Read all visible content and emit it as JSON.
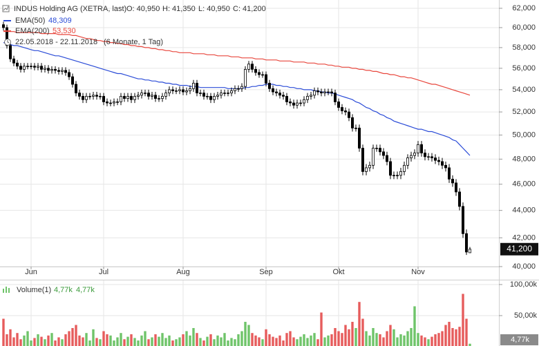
{
  "chart_data": {
    "type": "candlestick",
    "title": "INDUS Holding AG (XETRA, last)",
    "header_values": [
      "O: 40,950",
      "H: 41,350",
      "L: 40,950",
      "C: 41,200"
    ],
    "period": "22.05.2018 - 22.11.2018",
    "period_note": "(6 Monate, 1 Tag)",
    "open": [
      60.3,
      60.0,
      58.2,
      56.9,
      56.5,
      56.2,
      55.9,
      56.2,
      56.2,
      56.2,
      56.1,
      56.2,
      55.9,
      56.0,
      55.8,
      55.9,
      55.8,
      55.7,
      55.8,
      55.6,
      55.2,
      54.5,
      53.7,
      53.4,
      53.1,
      53.4,
      53.4,
      53.5,
      53.4,
      53.4,
      52.9,
      52.8,
      52.8,
      52.9,
      52.9,
      53.4,
      53.2,
      53.4,
      53.1,
      53.4,
      53.5,
      53.7,
      53.7,
      53.4,
      53.5,
      53.2,
      53.2,
      53.4,
      53.7,
      54.0,
      53.9,
      53.9,
      54.0,
      53.8,
      53.9,
      54.1,
      54.6,
      53.7,
      53.7,
      53.4,
      53.4,
      53.1,
      53.4,
      53.5,
      53.7,
      53.7,
      53.7,
      53.9,
      54.1,
      54.1,
      54.3,
      55.9,
      56.4,
      55.9,
      55.6,
      55.4,
      55.4,
      54.6,
      54.1,
      53.8,
      53.7,
      53.5,
      53.4,
      52.9,
      52.8,
      52.6,
      52.8,
      52.8,
      53.1,
      53.4,
      53.5,
      53.9,
      53.8,
      53.7,
      53.8,
      53.8,
      53.7,
      52.9,
      52.4,
      52.1,
      52.0,
      51.5,
      50.6,
      50.6,
      48.9,
      47.0,
      47.3,
      47.5,
      48.9,
      48.9,
      48.6,
      48.3,
      47.8,
      46.7,
      46.7,
      46.7,
      47.0,
      47.5,
      48.1,
      48.3,
      48.5,
      49.2,
      48.5,
      48.2,
      48.2,
      48.1,
      47.9,
      47.8,
      47.5,
      47.3,
      46.4,
      46.1,
      45.4,
      44.3,
      42.3,
      40.95
    ],
    "high": [
      60.6,
      60.3,
      58.5,
      57.2,
      56.8,
      56.5,
      56.5,
      56.5,
      56.5,
      56.5,
      56.5,
      56.5,
      56.3,
      56.3,
      56.2,
      56.2,
      56.1,
      56.1,
      56.1,
      55.9,
      55.5,
      54.8,
      54.0,
      53.7,
      53.7,
      53.7,
      53.8,
      53.8,
      53.7,
      53.7,
      53.2,
      53.1,
      53.2,
      53.2,
      53.7,
      53.7,
      53.7,
      53.7,
      53.7,
      53.8,
      54.0,
      54.0,
      54.0,
      53.8,
      53.8,
      53.5,
      53.7,
      54.0,
      54.3,
      54.3,
      54.2,
      54.3,
      54.3,
      54.2,
      54.4,
      54.9,
      54.9,
      54.0,
      54.0,
      53.7,
      53.7,
      53.7,
      53.8,
      54.0,
      54.0,
      54.0,
      54.2,
      54.4,
      54.4,
      54.6,
      56.2,
      56.7,
      56.7,
      56.2,
      55.9,
      55.7,
      55.7,
      54.9,
      54.4,
      54.1,
      54.0,
      53.8,
      53.7,
      53.2,
      53.1,
      53.1,
      53.1,
      53.4,
      53.7,
      53.8,
      54.2,
      54.2,
      54.1,
      54.1,
      54.1,
      54.1,
      54.0,
      53.2,
      52.7,
      52.4,
      52.3,
      51.8,
      50.9,
      50.9,
      49.2,
      47.6,
      47.8,
      49.2,
      49.2,
      49.2,
      48.9,
      48.6,
      48.1,
      47.0,
      47.0,
      47.3,
      47.8,
      48.4,
      48.6,
      48.8,
      49.5,
      49.5,
      48.8,
      48.5,
      48.5,
      48.4,
      48.2,
      48.1,
      47.8,
      47.6,
      46.7,
      46.4,
      45.7,
      44.6,
      42.6,
      41.35
    ],
    "low": [
      59.7,
      57.9,
      56.6,
      56.2,
      55.9,
      55.6,
      55.6,
      55.9,
      55.9,
      55.8,
      55.8,
      55.6,
      55.6,
      55.5,
      55.5,
      55.5,
      55.4,
      55.4,
      55.3,
      54.9,
      54.2,
      53.4,
      53.1,
      52.8,
      52.8,
      53.1,
      53.1,
      53.1,
      53.1,
      52.6,
      52.5,
      52.5,
      52.5,
      52.6,
      52.6,
      52.9,
      52.9,
      52.8,
      52.8,
      53.1,
      53.2,
      53.4,
      53.1,
      53.1,
      52.9,
      52.9,
      52.9,
      53.1,
      53.4,
      53.6,
      53.6,
      53.6,
      53.5,
      53.5,
      53.6,
      53.8,
      53.4,
      53.4,
      53.1,
      53.1,
      52.8,
      52.8,
      53.1,
      53.2,
      53.4,
      53.4,
      53.4,
      53.6,
      53.8,
      53.8,
      54.0,
      55.6,
      55.6,
      55.3,
      55.1,
      55.1,
      54.3,
      53.8,
      53.5,
      53.4,
      53.2,
      53.1,
      52.6,
      52.5,
      52.3,
      52.3,
      52.5,
      52.5,
      52.8,
      53.1,
      53.2,
      53.5,
      53.4,
      53.4,
      53.5,
      53.4,
      52.6,
      52.1,
      51.8,
      51.7,
      51.2,
      50.3,
      50.3,
      48.6,
      46.7,
      46.7,
      47.0,
      47.2,
      48.6,
      48.3,
      48.0,
      47.5,
      46.4,
      46.4,
      46.4,
      46.4,
      46.7,
      47.2,
      47.8,
      48.0,
      48.2,
      48.2,
      47.9,
      47.9,
      47.8,
      47.6,
      47.5,
      47.2,
      47.0,
      46.1,
      45.8,
      45.1,
      44.0,
      42.0,
      40.8,
      40.95
    ],
    "close": [
      60.0,
      58.2,
      56.9,
      56.5,
      56.2,
      55.9,
      56.2,
      56.2,
      56.2,
      56.1,
      56.2,
      55.9,
      56.0,
      55.8,
      55.9,
      55.8,
      55.7,
      55.8,
      55.6,
      55.2,
      54.5,
      53.7,
      53.4,
      53.1,
      53.4,
      53.4,
      53.5,
      53.4,
      53.4,
      52.9,
      52.8,
      52.8,
      52.9,
      52.9,
      53.4,
      53.2,
      53.4,
      53.1,
      53.4,
      53.5,
      53.7,
      53.7,
      53.4,
      53.5,
      53.2,
      53.2,
      53.4,
      53.7,
      54.0,
      53.9,
      53.9,
      54.0,
      53.8,
      53.9,
      54.1,
      54.6,
      53.7,
      53.7,
      53.4,
      53.4,
      53.1,
      53.4,
      53.5,
      53.7,
      53.7,
      53.7,
      53.9,
      54.1,
      54.1,
      54.3,
      55.9,
      56.4,
      55.9,
      55.6,
      55.4,
      55.4,
      54.6,
      54.1,
      53.8,
      53.7,
      53.5,
      53.4,
      52.9,
      52.8,
      52.6,
      52.8,
      52.8,
      53.1,
      53.4,
      53.5,
      53.9,
      53.8,
      53.7,
      53.8,
      53.8,
      53.7,
      52.9,
      52.4,
      52.1,
      52.0,
      51.5,
      50.6,
      50.6,
      48.9,
      47.0,
      47.3,
      47.5,
      48.9,
      48.9,
      48.6,
      48.3,
      47.8,
      46.7,
      46.7,
      46.7,
      47.0,
      47.5,
      48.1,
      48.3,
      48.5,
      49.2,
      48.5,
      48.2,
      48.2,
      48.1,
      47.9,
      47.8,
      47.5,
      47.3,
      46.4,
      46.1,
      45.4,
      44.3,
      42.3,
      41.0,
      41.2
    ],
    "up_color": "#ffffff",
    "down_color": "#000000",
    "last_label": "41,200",
    "ylim": [
      40,
      62
    ],
    "log_scale": true,
    "yticks": [
      {
        "value": 62,
        "label": "62,000"
      },
      {
        "value": 60,
        "label": "60,000"
      },
      {
        "value": 58,
        "label": "58,000"
      },
      {
        "value": 56,
        "label": "56,000"
      },
      {
        "value": 54,
        "label": "54,000"
      },
      {
        "value": 52,
        "label": "52,000"
      },
      {
        "value": 50,
        "label": "50,000"
      },
      {
        "value": 48,
        "label": "48,000"
      },
      {
        "value": 46,
        "label": "46,000"
      },
      {
        "value": 44,
        "label": "44,000"
      },
      {
        "value": 42,
        "label": "42,000"
      },
      {
        "value": 40,
        "label": "40,000"
      }
    ],
    "xticks": [
      {
        "value": 8,
        "label": "Jun"
      },
      {
        "value": 29,
        "label": "Jul"
      },
      {
        "value": 52,
        "label": "Aug"
      },
      {
        "value": 76,
        "label": "Sep"
      },
      {
        "value": 97,
        "label": "Okt"
      },
      {
        "value": 120,
        "label": "Nov"
      }
    ],
    "grid": true,
    "overlays": [
      {
        "name": "EMA(50)",
        "color": "#2a4bd7",
        "value_label": "48,309",
        "values": [
          58.5,
          58.4,
          58.3,
          58.2,
          58.2,
          58.1,
          58.0,
          57.9,
          57.8,
          57.7,
          57.7,
          57.6,
          57.5,
          57.4,
          57.3,
          57.2,
          57.2,
          57.1,
          57.0,
          56.9,
          56.8,
          56.7,
          56.6,
          56.5,
          56.4,
          56.3,
          56.2,
          56.1,
          56.0,
          55.9,
          55.8,
          55.7,
          55.6,
          55.5,
          55.5,
          55.4,
          55.3,
          55.2,
          55.1,
          55.0,
          55.0,
          54.9,
          54.9,
          54.8,
          54.8,
          54.7,
          54.7,
          54.6,
          54.6,
          54.5,
          54.5,
          54.4,
          54.4,
          54.4,
          54.3,
          54.3,
          54.3,
          54.2,
          54.2,
          54.2,
          54.2,
          54.2,
          54.2,
          54.2,
          54.2,
          54.1,
          54.1,
          54.1,
          54.1,
          54.1,
          54.2,
          54.2,
          54.3,
          54.3,
          54.4,
          54.4,
          54.5,
          54.5,
          54.5,
          54.4,
          54.4,
          54.3,
          54.3,
          54.2,
          54.2,
          54.1,
          54.1,
          54.0,
          54.0,
          54.0,
          53.9,
          53.9,
          53.8,
          53.8,
          53.7,
          53.7,
          53.6,
          53.5,
          53.4,
          53.3,
          53.2,
          53.1,
          52.9,
          52.8,
          52.6,
          52.4,
          52.3,
          52.1,
          52.0,
          51.8,
          51.7,
          51.5,
          51.4,
          51.2,
          51.1,
          51.0,
          50.9,
          50.8,
          50.7,
          50.6,
          50.5,
          50.5,
          50.4,
          50.3,
          50.3,
          50.2,
          50.1,
          50.0,
          49.9,
          49.8,
          49.6,
          49.5,
          49.2,
          48.9,
          48.6,
          48.3
        ]
      },
      {
        "name": "EMA(200)",
        "color": "#e8463c",
        "value_label": "53,530",
        "values": [
          59.6,
          59.6,
          59.6,
          59.6,
          59.5,
          59.5,
          59.5,
          59.5,
          59.5,
          59.5,
          59.5,
          59.4,
          59.4,
          59.4,
          59.4,
          59.4,
          59.3,
          59.3,
          59.3,
          59.3,
          59.2,
          59.2,
          59.1,
          59.0,
          58.9,
          58.9,
          58.8,
          58.7,
          58.7,
          58.6,
          58.6,
          58.5,
          58.5,
          58.4,
          58.4,
          58.3,
          58.3,
          58.2,
          58.2,
          58.1,
          58.1,
          58.0,
          58.0,
          57.9,
          57.9,
          57.8,
          57.8,
          57.7,
          57.7,
          57.6,
          57.6,
          57.5,
          57.5,
          57.5,
          57.5,
          57.4,
          57.4,
          57.4,
          57.4,
          57.3,
          57.3,
          57.3,
          57.2,
          57.2,
          57.2,
          57.2,
          57.1,
          57.1,
          57.1,
          57.0,
          57.0,
          57.0,
          57.0,
          56.9,
          56.9,
          56.9,
          56.8,
          56.8,
          56.8,
          56.8,
          56.7,
          56.7,
          56.7,
          56.7,
          56.6,
          56.6,
          56.6,
          56.6,
          56.5,
          56.5,
          56.5,
          56.4,
          56.4,
          56.4,
          56.3,
          56.3,
          56.2,
          56.2,
          56.1,
          56.1,
          56.1,
          56.0,
          56.0,
          55.9,
          55.9,
          55.8,
          55.8,
          55.7,
          55.7,
          55.6,
          55.5,
          55.5,
          55.4,
          55.4,
          55.3,
          55.2,
          55.2,
          55.1,
          55.1,
          55.0,
          54.9,
          54.8,
          54.7,
          54.6,
          54.5,
          54.5,
          54.4,
          54.3,
          54.2,
          54.1,
          54.0,
          53.9,
          53.8,
          53.7,
          53.6,
          53.5
        ]
      }
    ],
    "volume": {
      "name": "Volume(1)",
      "legend_values": [
        "4,77k",
        "4,77k"
      ],
      "last_label": "4,77k",
      "up_color": "#6fc46a",
      "down_color": "#e65c5c",
      "ylim": [
        0,
        100
      ],
      "yticks": [
        {
          "value": 100,
          "label": "100,00k"
        },
        {
          "value": 50,
          "label": "50,00k"
        }
      ],
      "values": [
        45,
        20,
        28,
        15,
        22,
        12,
        18,
        25,
        10,
        14,
        20,
        16,
        12,
        18,
        22,
        10,
        15,
        12,
        20,
        25,
        30,
        35,
        18,
        15,
        22,
        10,
        28,
        14,
        12,
        25,
        20,
        18,
        10,
        15,
        22,
        12,
        16,
        20,
        14,
        10,
        18,
        25,
        12,
        15,
        20,
        16,
        22,
        14,
        18,
        10,
        12,
        15,
        20,
        25,
        18,
        30,
        22,
        14,
        10,
        16,
        20,
        12,
        18,
        15,
        22,
        10,
        14,
        12,
        20,
        25,
        40,
        35,
        22,
        18,
        15,
        12,
        28,
        20,
        16,
        14,
        18,
        10,
        22,
        25,
        15,
        12,
        16,
        20,
        14,
        18,
        22,
        12,
        55,
        15,
        18,
        20,
        30,
        25,
        22,
        35,
        28,
        40,
        30,
        72,
        45,
        25,
        18,
        30,
        22,
        20,
        15,
        25,
        35,
        28,
        15,
        20,
        18,
        25,
        30,
        65,
        22,
        18,
        15,
        12,
        16,
        20,
        22,
        25,
        35,
        40,
        30,
        28,
        32,
        85,
        45,
        4.77
      ]
    }
  }
}
